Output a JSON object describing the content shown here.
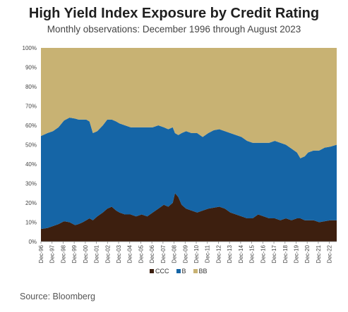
{
  "title": "High Yield Index Exposure by Credit Rating",
  "subtitle": "Monthly observations: December 1996 through August 2023",
  "source": "Source: Bloomberg",
  "chart_data": {
    "type": "area",
    "stacked": true,
    "ylim": [
      0,
      100
    ],
    "yticks": [
      "0%",
      "10%",
      "20%",
      "30%",
      "40%",
      "50%",
      "60%",
      "70%",
      "80%",
      "90%",
      "100%"
    ],
    "xticks": [
      "Dec-96",
      "Dec-97",
      "Dec-98",
      "Dec-99",
      "Dec-00",
      "Dec-01",
      "Dec-02",
      "Dec-03",
      "Dec-04",
      "Dec-05",
      "Dec-06",
      "Dec-07",
      "Dec-08",
      "Dec-09",
      "Dec-10",
      "Dec-11",
      "Dec-12",
      "Dec-13",
      "Dec-14",
      "Dec-15",
      "Dec-16",
      "Dec-17",
      "Dec-18",
      "Dec-19",
      "Dec-20",
      "Dec-21",
      "Dec-22"
    ],
    "x": [
      1996.92,
      1997.5,
      1998.0,
      1998.5,
      1999.0,
      1999.5,
      2000.0,
      2000.3,
      2000.7,
      2001.0,
      2001.3,
      2001.6,
      2002.0,
      2002.5,
      2002.9,
      2003.3,
      2003.7,
      2004.0,
      2004.5,
      2005.0,
      2005.5,
      2006.0,
      2006.5,
      2007.0,
      2007.5,
      2008.0,
      2008.4,
      2008.8,
      2009.0,
      2009.3,
      2009.6,
      2010.0,
      2010.5,
      2011.0,
      2011.5,
      2012.0,
      2012.5,
      2013.0,
      2013.5,
      2014.0,
      2014.5,
      2015.0,
      2015.5,
      2016.0,
      2016.5,
      2017.0,
      2017.5,
      2018.0,
      2018.5,
      2019.0,
      2019.5,
      2020.0,
      2020.3,
      2020.7,
      2021.0,
      2021.5,
      2022.0,
      2022.5,
      2023.0,
      2023.58
    ],
    "series": [
      {
        "name": "CCC",
        "color": "#3d1f0f",
        "values": [
          6.5,
          7,
          8,
          9,
          10.5,
          10,
          8.5,
          9,
          10,
          11,
          12,
          11,
          13,
          15,
          17,
          18,
          16,
          15,
          14,
          14,
          13,
          14,
          13,
          15,
          17,
          19,
          18,
          20,
          25,
          23,
          19,
          17,
          16,
          15,
          16,
          17,
          17.5,
          18,
          17,
          15,
          14,
          13,
          12,
          12,
          14,
          13,
          12,
          12,
          11,
          12,
          11,
          12,
          12,
          11,
          11,
          11,
          10,
          10.5,
          11,
          11
        ]
      },
      {
        "name": "B",
        "color": "#1565a6",
        "values": [
          48,
          49,
          49,
          50,
          52,
          54,
          55,
          54,
          53,
          52,
          50,
          45,
          44,
          45,
          46,
          45,
          46,
          46,
          46,
          45,
          46,
          45,
          46,
          44,
          43,
          40,
          40,
          39,
          31,
          32,
          37,
          40,
          40,
          41,
          38,
          39,
          40,
          40,
          40,
          41,
          41,
          41,
          40,
          39,
          37,
          38,
          39,
          40,
          40,
          38,
          37,
          34,
          31,
          33,
          35,
          36,
          37,
          38,
          38,
          39
        ]
      },
      {
        "name": "BB",
        "color": "#c8b273",
        "values": [
          45.5,
          44,
          43,
          41,
          37.5,
          36,
          36.5,
          37,
          37,
          37,
          38,
          44,
          43,
          40,
          37,
          37,
          38,
          39,
          40,
          41,
          41,
          41,
          41,
          41,
          40,
          41,
          42,
          41,
          44,
          45,
          44,
          43,
          44,
          44,
          46,
          44,
          42.5,
          42,
          43,
          44,
          45,
          46,
          48,
          49,
          49,
          49,
          49,
          48,
          49,
          50,
          52,
          54,
          57,
          56,
          54,
          53,
          53,
          51.5,
          51,
          50
        ]
      }
    ],
    "legend": "bottom-center"
  }
}
